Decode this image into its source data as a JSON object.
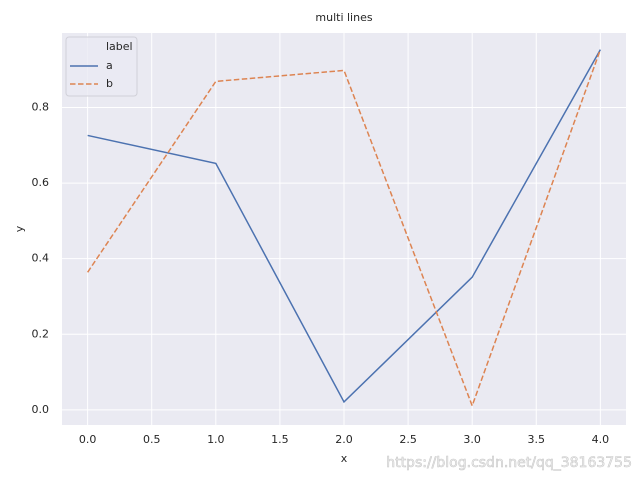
{
  "chart_data": {
    "type": "line",
    "title": "multi lines",
    "x_label": "x",
    "y_label": "y",
    "x": [
      0,
      1,
      2,
      3,
      4
    ],
    "series": [
      {
        "name": "a",
        "color": "#4c72b0",
        "style": "solid",
        "values": [
          0.726,
          0.652,
          0.021,
          0.351,
          0.953
        ]
      },
      {
        "name": "b",
        "color": "#dd8452",
        "style": "dashed",
        "values": [
          0.364,
          0.869,
          0.898,
          0.011,
          0.953
        ]
      }
    ],
    "legend_title": "label",
    "legend_position": "upper left",
    "xlim": [
      -0.2,
      4.2
    ],
    "xticks": [
      {
        "value": 0,
        "label": "0.0"
      },
      {
        "value": 0.5,
        "label": "0.5"
      },
      {
        "value": 1,
        "label": "1.0"
      },
      {
        "value": 1.5,
        "label": "1.5"
      },
      {
        "value": 2,
        "label": "2.0"
      },
      {
        "value": 2.5,
        "label": "2.5"
      },
      {
        "value": 3,
        "label": "3.0"
      },
      {
        "value": 3.5,
        "label": "3.5"
      },
      {
        "value": 4,
        "label": "4.0"
      }
    ],
    "ylim": [
      -0.04,
      0.997
    ],
    "yticks": [
      {
        "value": 0,
        "label": "0.0"
      },
      {
        "value": 0.2,
        "label": "0.2"
      },
      {
        "value": 0.4,
        "label": "0.4"
      },
      {
        "value": 0.6,
        "label": "0.6"
      },
      {
        "value": 0.8,
        "label": "0.8"
      }
    ],
    "grid": true,
    "watermark": "https://blog.csdn.net/qq_38163755"
  }
}
